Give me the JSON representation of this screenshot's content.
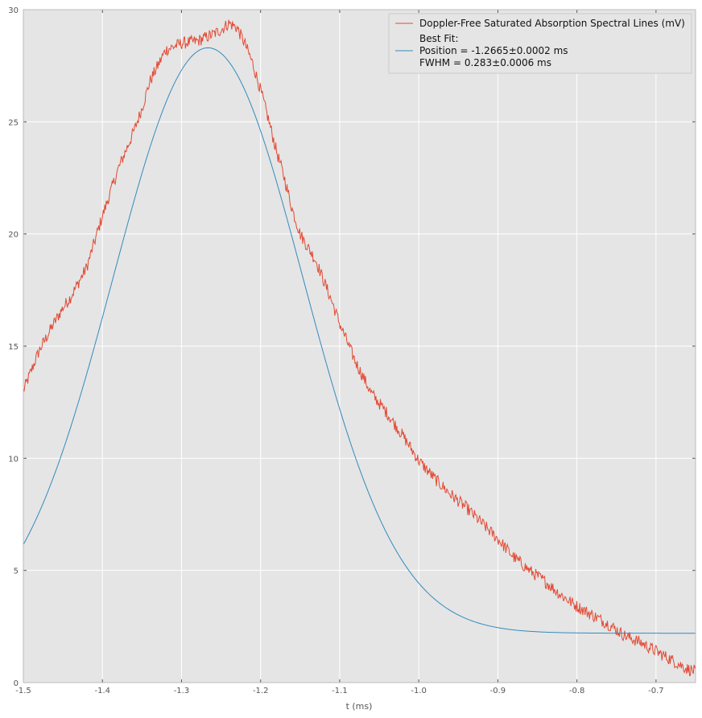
{
  "chart_data": {
    "type": "line",
    "xlabel": "t (ms)",
    "ylabel": "",
    "xlim": [
      -1.5,
      -0.65
    ],
    "ylim": [
      0,
      30
    ],
    "x_ticks": [
      -1.5,
      -1.4,
      -1.3,
      -1.2,
      -1.1,
      -1.0,
      -0.9,
      -0.8,
      -0.7
    ],
    "x_tick_labels": [
      "-1.5",
      "-1.4",
      "-1.3",
      "-1.2",
      "-1.1",
      "-1.0",
      "-0.9",
      "-0.8",
      "-0.7"
    ],
    "y_ticks": [
      0,
      5,
      10,
      15,
      20,
      25,
      30
    ],
    "y_tick_labels": [
      "0",
      "5",
      "10",
      "15",
      "20",
      "25",
      "30"
    ],
    "grid": true,
    "background": "#e5e5e5",
    "legend_position": "top-right",
    "series": [
      {
        "name": "Doppler-Free Saturated Absorption Spectral Lines (mV)",
        "color": "#e24a33",
        "x": [
          -1.5,
          -1.48,
          -1.46,
          -1.45,
          -1.44,
          -1.42,
          -1.4,
          -1.38,
          -1.36,
          -1.35,
          -1.34,
          -1.32,
          -1.3,
          -1.28,
          -1.26,
          -1.25,
          -1.24,
          -1.23,
          -1.22,
          -1.21,
          -1.2,
          -1.19,
          -1.18,
          -1.17,
          -1.16,
          -1.15,
          -1.14,
          -1.13,
          -1.12,
          -1.11,
          -1.1,
          -1.08,
          -1.06,
          -1.04,
          -1.02,
          -1.0,
          -0.98,
          -0.96,
          -0.94,
          -0.92,
          -0.9,
          -0.88,
          -0.86,
          -0.84,
          -0.82,
          -0.8,
          -0.78,
          -0.76,
          -0.74,
          -0.72,
          -0.7,
          -0.68,
          -0.66,
          -0.65
        ],
        "y": [
          13.0,
          14.8,
          16.1,
          16.7,
          17.2,
          18.5,
          20.8,
          22.9,
          24.6,
          25.6,
          26.8,
          28.2,
          28.5,
          28.6,
          28.9,
          29.1,
          29.4,
          29.2,
          28.5,
          27.6,
          26.4,
          25.1,
          23.7,
          22.5,
          21.1,
          20.0,
          19.4,
          18.8,
          17.9,
          17.0,
          16.0,
          14.3,
          12.9,
          12.0,
          11.0,
          9.9,
          9.1,
          8.4,
          7.8,
          7.1,
          6.4,
          5.6,
          5.0,
          4.5,
          3.9,
          3.4,
          3.0,
          2.6,
          2.1,
          1.8,
          1.4,
          1.0,
          0.6,
          0.5
        ]
      },
      {
        "name": "Best Fit:\nPosition = -1.2665±0.0002 ms\nFWHM = 0.283±0.0006 ms",
        "color": "#348abd",
        "model": "gaussian",
        "position": -1.2665,
        "fwhm": 0.283,
        "amplitude": 26.1,
        "offset": 2.2
      }
    ],
    "legend": {
      "entries": [
        {
          "label": "Doppler-Free Saturated Absorption Spectral Lines (mV)",
          "color": "#e24a33"
        },
        {
          "label": "Best Fit:",
          "color": ""
        },
        {
          "label": "Position = -1.2665±0.0002 ms",
          "color": "#348abd"
        },
        {
          "label": "FWHM = 0.283±0.0006 ms",
          "color": ""
        }
      ]
    }
  }
}
